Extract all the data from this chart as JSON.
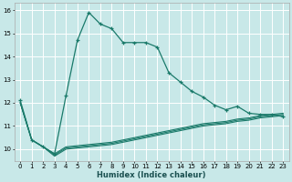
{
  "xlabel": "Humidex (Indice chaleur)",
  "bg_color": "#c8e8e8",
  "grid_color": "#ffffff",
  "line_color": "#1a7a6a",
  "xlim": [
    -0.5,
    23.5
  ],
  "ylim": [
    9.5,
    16.3
  ],
  "xticks": [
    0,
    1,
    2,
    3,
    4,
    5,
    6,
    7,
    8,
    9,
    10,
    11,
    12,
    13,
    14,
    15,
    16,
    17,
    18,
    19,
    20,
    21,
    22,
    23
  ],
  "yticks": [
    10,
    11,
    12,
    13,
    14,
    15,
    16
  ],
  "flat1_x": [
    0,
    1,
    2,
    3,
    4,
    5,
    6,
    7,
    8,
    9,
    10,
    11,
    12,
    13,
    14,
    15,
    16,
    17,
    18,
    19,
    20,
    21,
    22,
    23
  ],
  "flat1_y": [
    12.0,
    10.4,
    10.1,
    9.8,
    10.1,
    10.15,
    10.2,
    10.25,
    10.3,
    10.4,
    10.5,
    10.6,
    10.7,
    10.8,
    10.9,
    11.0,
    11.1,
    11.15,
    11.2,
    11.3,
    11.35,
    11.45,
    11.5,
    11.55
  ],
  "flat2_x": [
    0,
    1,
    2,
    3,
    4,
    5,
    6,
    7,
    8,
    9,
    10,
    11,
    12,
    13,
    14,
    15,
    16,
    17,
    18,
    19,
    20,
    21,
    22,
    23
  ],
  "flat2_y": [
    12.0,
    10.4,
    10.1,
    9.75,
    10.05,
    10.1,
    10.15,
    10.2,
    10.25,
    10.35,
    10.45,
    10.55,
    10.65,
    10.75,
    10.85,
    10.95,
    11.05,
    11.1,
    11.15,
    11.25,
    11.3,
    11.4,
    11.45,
    11.5
  ],
  "flat3_x": [
    0,
    1,
    2,
    3,
    4,
    5,
    6,
    7,
    8,
    9,
    10,
    11,
    12,
    13,
    14,
    15,
    16,
    17,
    18,
    19,
    20,
    21,
    22,
    23
  ],
  "flat3_y": [
    12.0,
    10.4,
    10.1,
    9.7,
    10.0,
    10.05,
    10.1,
    10.15,
    10.2,
    10.3,
    10.4,
    10.5,
    10.6,
    10.7,
    10.8,
    10.9,
    11.0,
    11.05,
    11.1,
    11.2,
    11.25,
    11.35,
    11.4,
    11.45
  ],
  "main_x": [
    0,
    1,
    2,
    3,
    4,
    5,
    6,
    7,
    8,
    9,
    10,
    11,
    12,
    13,
    14,
    15,
    16,
    17,
    18,
    19,
    20,
    21,
    22,
    23
  ],
  "main_y": [
    12.1,
    10.4,
    10.1,
    9.8,
    12.3,
    14.7,
    15.9,
    15.4,
    15.2,
    14.6,
    14.6,
    14.6,
    14.4,
    13.3,
    12.9,
    12.5,
    12.25,
    11.9,
    11.7,
    11.85,
    11.55,
    11.5,
    11.5,
    11.4
  ]
}
